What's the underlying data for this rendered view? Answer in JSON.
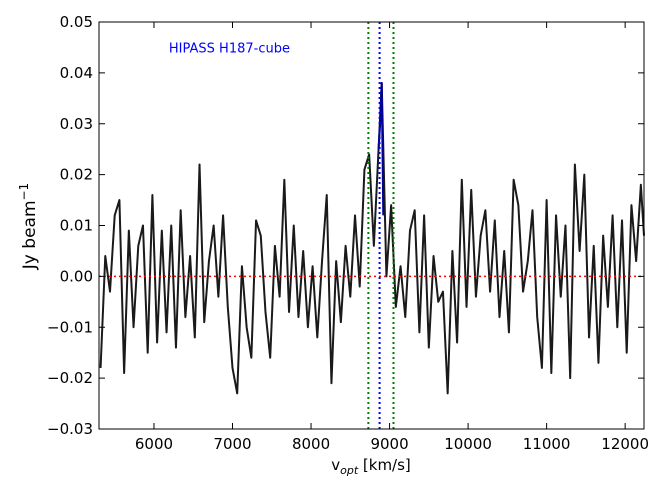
{
  "chart_data": {
    "type": "line",
    "annotation": {
      "text": "HIPASS H187-cube",
      "x": 6190,
      "y": 0.045,
      "color": "#0000ff"
    },
    "xlabel": {
      "main": "v",
      "sub": "opt",
      "rest": " [km/s]"
    },
    "ylabel": {
      "main": "Jy beam",
      "sup": "−1"
    },
    "xlim": [
      5300,
      12240
    ],
    "ylim": [
      -0.03,
      0.05
    ],
    "xticks": [
      6000,
      7000,
      8000,
      9000,
      10000,
      11000,
      12000
    ],
    "yticks": [
      {
        "value": -0.03,
        "label": "−0.03"
      },
      {
        "value": -0.02,
        "label": "−0.02"
      },
      {
        "value": -0.01,
        "label": "−0.01"
      },
      {
        "value": 0,
        "label": "0.00"
      },
      0.01,
      0.02,
      0.03,
      0.04,
      0.05
    ],
    "vlines": [
      {
        "x": 8730,
        "color": "#008000"
      },
      {
        "x": 8873,
        "color": "#0000ff"
      },
      {
        "x": 9050,
        "color": "#008000"
      }
    ],
    "hline": {
      "y": 0,
      "color": "#ff0000"
    },
    "series": [
      {
        "color": "#1a1a1a",
        "x": [
          5320,
          5380,
          5440,
          5500,
          5560,
          5620,
          5680,
          5740,
          5800,
          5860,
          5920,
          5980,
          6040,
          6100,
          6160,
          6220,
          6280,
          6340,
          6400,
          6460,
          6520,
          6580,
          6640,
          6700,
          6760,
          6820,
          6880,
          6940,
          7000,
          7060,
          7120,
          7180,
          7240,
          7300,
          7360,
          7420,
          7480,
          7540,
          7600,
          7660,
          7720,
          7780,
          7840,
          7900,
          7960,
          8020,
          8080,
          8140,
          8200,
          8260,
          8320,
          8380,
          8440,
          8500,
          8560,
          8620,
          8680,
          8740,
          8800,
          8860,
          8900,
          8960,
          9020,
          9080,
          9140,
          9200,
          9260,
          9320,
          9380,
          9440,
          9500,
          9560,
          9620,
          9680,
          9740,
          9800,
          9860,
          9920,
          9980,
          10040,
          10100,
          10160,
          10220,
          10280,
          10340,
          10400,
          10460,
          10520,
          10580,
          10640,
          10700,
          10760,
          10820,
          10880,
          10940,
          11000,
          11060,
          11120,
          11180,
          11240,
          11300,
          11360,
          11420,
          11480,
          11540,
          11600,
          11660,
          11720,
          11780,
          11840,
          11900,
          11960,
          12020,
          12080,
          12140,
          12200,
          12240
        ],
        "values": [
          -0.018,
          0.004,
          -0.003,
          0.012,
          0.015,
          -0.019,
          0.009,
          -0.01,
          0.006,
          0.01,
          -0.015,
          0.016,
          -0.013,
          0.009,
          -0.011,
          0.01,
          -0.014,
          0.013,
          -0.008,
          0.004,
          -0.012,
          0.022,
          -0.009,
          0.003,
          0.01,
          -0.004,
          0.012,
          -0.006,
          -0.018,
          -0.023,
          0.002,
          -0.01,
          -0.016,
          0.011,
          0.008,
          -0.007,
          -0.016,
          0.006,
          -0.004,
          0.019,
          -0.007,
          0.01,
          -0.008,
          0.005,
          -0.01,
          0.002,
          -0.012,
          0.003,
          0.016,
          -0.021,
          0.003,
          -0.009,
          0.006,
          -0.004,
          0.012,
          -0.002,
          0.021,
          0.024,
          0.006,
          0.025,
          0.038,
          0.0,
          0.014,
          -0.006,
          0.002,
          -0.008,
          0.009,
          0.013,
          -0.011,
          0.012,
          -0.014,
          0.004,
          -0.005,
          -0.003,
          -0.023,
          0.005,
          -0.013,
          0.019,
          -0.006,
          0.017,
          -0.004,
          0.008,
          0.013,
          -0.003,
          0.011,
          -0.008,
          0.005,
          -0.011,
          0.019,
          0.014,
          -0.003,
          0.003,
          0.013,
          -0.008,
          -0.018,
          0.015,
          -0.019,
          0.012,
          -0.004,
          0.01,
          -0.02,
          0.022,
          0.005,
          0.02,
          -0.012,
          0.006,
          -0.017,
          0.008,
          -0.006,
          0.012,
          -0.01,
          0.011,
          -0.015,
          0.014,
          0.003,
          0.018,
          0.008
        ]
      },
      {
        "color": "#00008b",
        "x": [
          8860,
          8880,
          8900,
          8920
        ],
        "values": [
          0.025,
          0.03,
          0.038,
          0.012
        ]
      }
    ]
  }
}
